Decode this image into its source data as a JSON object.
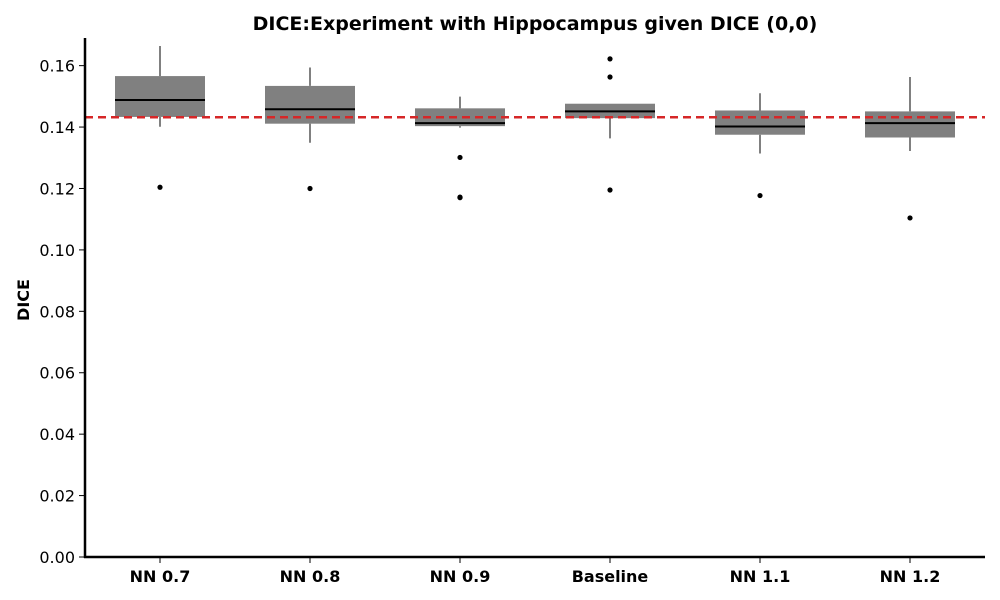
{
  "chart_data": {
    "type": "boxplot",
    "title": "DICE:Experiment with Hippocampus given DICE (0,0)",
    "xlabel": "",
    "ylabel": "DICE",
    "ylim": [
      0,
      0.169
    ],
    "yticks": [
      "0.00",
      "0.02",
      "0.04",
      "0.06",
      "0.08",
      "0.10",
      "0.12",
      "0.14",
      "0.16"
    ],
    "grid": false,
    "categories": [
      "NN 0.7",
      "NN 0.8",
      "NN 0.9",
      "Baseline",
      "NN 1.1",
      "NN 1.2"
    ],
    "boxes": [
      {
        "whisker_low": 0.1401,
        "q1": 0.1433,
        "median": 0.1488,
        "q3": 0.1566,
        "whisker_high": 0.1664,
        "outliers": [
          0.1204
        ]
      },
      {
        "whisker_low": 0.1349,
        "q1": 0.1411,
        "median": 0.1458,
        "q3": 0.1534,
        "whisker_high": 0.1594,
        "outliers": [
          0.12
        ]
      },
      {
        "whisker_low": 0.1398,
        "q1": 0.1403,
        "median": 0.1413,
        "q3": 0.1461,
        "whisker_high": 0.1499,
        "outliers": [
          0.1301,
          0.1172,
          0.117
        ]
      },
      {
        "whisker_low": 0.1363,
        "q1": 0.1429,
        "median": 0.1451,
        "q3": 0.1476,
        "whisker_high": 0.1476,
        "outliers": [
          0.1622,
          0.1563,
          0.1195
        ]
      },
      {
        "whisker_low": 0.1314,
        "q1": 0.1375,
        "median": 0.1402,
        "q3": 0.1454,
        "whisker_high": 0.151,
        "outliers": [
          0.1177
        ]
      },
      {
        "whisker_low": 0.1322,
        "q1": 0.1366,
        "median": 0.1413,
        "q3": 0.1451,
        "whisker_high": 0.1563,
        "outliers": [
          0.1104
        ]
      }
    ],
    "reference_line": {
      "value": 0.1432,
      "style": "dashed"
    },
    "colors": {
      "box": "#808080",
      "median": "#000000",
      "whisker": "#000000",
      "outlier": "#000000",
      "reference_line": "#d62728"
    }
  }
}
